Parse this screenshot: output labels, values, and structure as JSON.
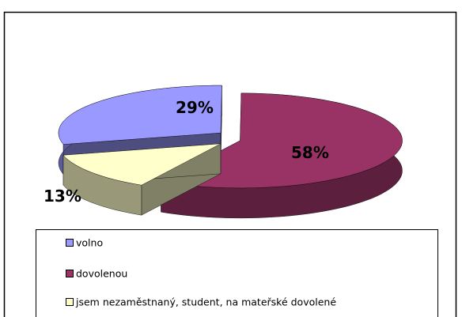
{
  "chart_data": {
    "type": "pie",
    "categories": [
      "volno",
      "dovolenou",
      "jsem nezaměstnaný, student, na mateřské dovolené"
    ],
    "values": [
      29,
      58,
      13
    ],
    "value_labels": [
      "29%",
      "58%",
      "13%"
    ],
    "colors": [
      "#9999ff",
      "#993366",
      "#ffffcc"
    ],
    "legend": "bottom"
  }
}
